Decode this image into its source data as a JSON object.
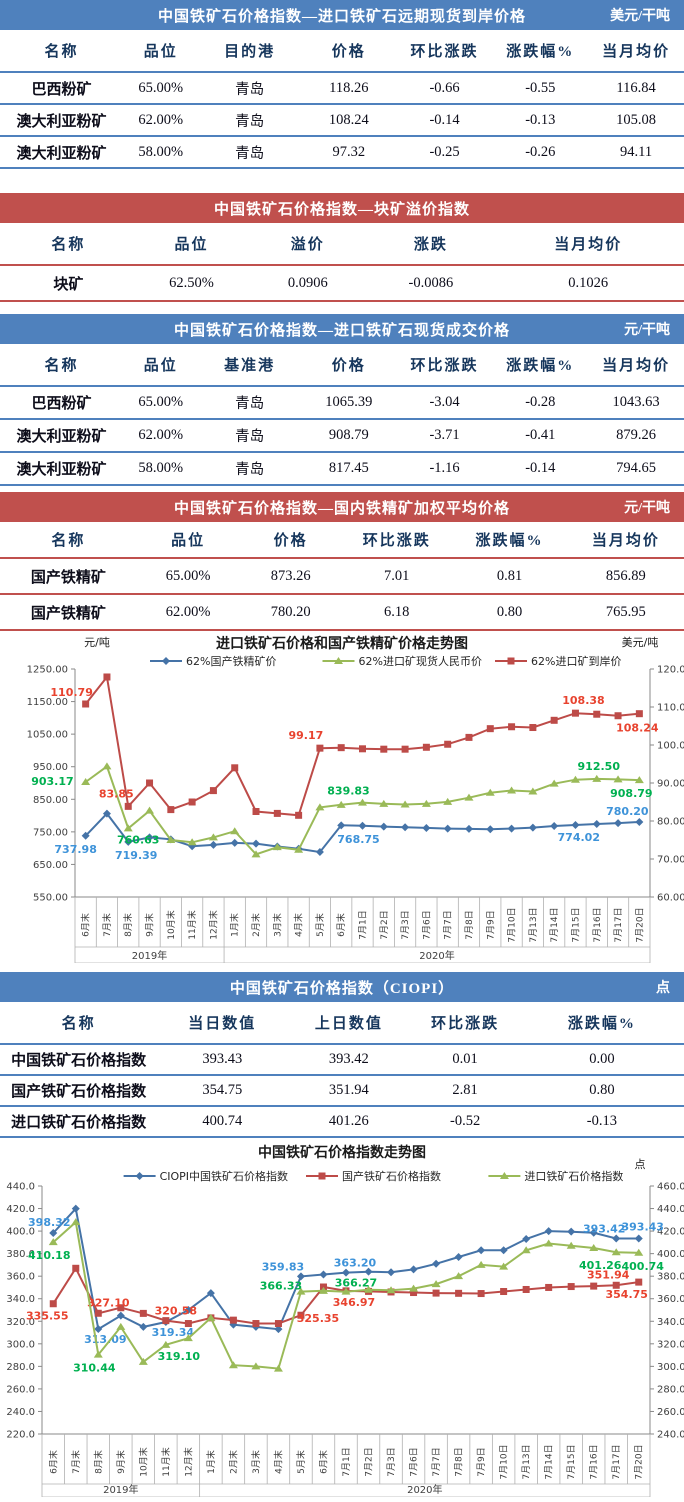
{
  "tables": [
    {
      "title": "中国铁矿石价格指数—进口铁矿石远期现货到岸价格",
      "unit": "美元/干吨",
      "accent": "#4F81BD",
      "columns": [
        "名称",
        "品位",
        "目的港",
        "价格",
        "环比涨跌",
        "涨跌幅%",
        "当月均价"
      ],
      "col_widths": [
        "18%",
        "11%",
        "15%",
        "14%",
        "14%",
        "14%",
        "14%"
      ],
      "rows": [
        [
          "巴西粉矿",
          "65.00%",
          "青岛",
          "118.26",
          "-0.66",
          "-0.55",
          "116.84"
        ],
        [
          "澳大利亚粉矿",
          "62.00%",
          "青岛",
          "108.24",
          "-0.14",
          "-0.13",
          "105.08"
        ],
        [
          "澳大利亚粉矿",
          "58.00%",
          "青岛",
          "97.32",
          "-0.25",
          "-0.26",
          "94.11"
        ]
      ]
    },
    {
      "title": "中国铁矿石价格指数—块矿溢价指数",
      "unit": "",
      "accent": "#C0504D",
      "columns": [
        "名称",
        "品位",
        "溢价",
        "涨跌",
        "当月均价"
      ],
      "col_widths": [
        "20%",
        "16%",
        "18%",
        "18%",
        "28%"
      ],
      "rows": [
        [
          "块矿",
          "62.50%",
          "0.0906",
          "-0.0086",
          "0.1026"
        ]
      ]
    },
    {
      "title": "中国铁矿石价格指数—进口铁矿石现货成交价格",
      "unit": "元/干吨",
      "accent": "#4F81BD",
      "columns": [
        "名称",
        "品位",
        "基准港",
        "价格",
        "环比涨跌",
        "涨跌幅%",
        "当月均价"
      ],
      "col_widths": [
        "18%",
        "11%",
        "15%",
        "14%",
        "14%",
        "14%",
        "14%"
      ],
      "rows": [
        [
          "巴西粉矿",
          "65.00%",
          "青岛",
          "1065.39",
          "-3.04",
          "-0.28",
          "1043.63"
        ],
        [
          "澳大利亚粉矿",
          "62.00%",
          "青岛",
          "908.79",
          "-3.71",
          "-0.41",
          "879.26"
        ],
        [
          "澳大利亚粉矿",
          "58.00%",
          "青岛",
          "817.45",
          "-1.16",
          "-0.14",
          "794.65"
        ]
      ]
    },
    {
      "title": "中国铁矿石价格指数—国内铁精矿加权平均价格",
      "unit": "元/干吨",
      "accent": "#C0504D",
      "columns": [
        "名称",
        "品位",
        "价格",
        "环比涨跌",
        "涨跌幅%",
        "当月均价"
      ],
      "col_widths": [
        "20%",
        "15%",
        "15%",
        "16%",
        "17%",
        "17%"
      ],
      "rows": [
        [
          "国产铁精矿",
          "65.00%",
          "873.26",
          "7.01",
          "0.81",
          "856.89"
        ],
        [
          "国产铁精矿",
          "62.00%",
          "780.20",
          "6.18",
          "0.80",
          "765.95"
        ]
      ]
    },
    {
      "title": "中国铁矿石价格指数（CIOPI）",
      "unit": "点",
      "accent": "#4F81BD",
      "columns": [
        "名称",
        "当日数值",
        "上日数值",
        "环比涨跌",
        "涨跌幅%"
      ],
      "col_widths": [
        "23%",
        "19%",
        "18%",
        "16%",
        "24%"
      ],
      "rows": [
        [
          "中国铁矿石价格指数",
          "393.43",
          "393.42",
          "0.01",
          "0.00"
        ],
        [
          "国产铁矿石价格指数",
          "354.75",
          "351.94",
          "2.81",
          "0.80"
        ],
        [
          "进口铁矿石价格指数",
          "400.74",
          "401.26",
          "-0.52",
          "-0.13"
        ]
      ]
    }
  ],
  "chart_data": [
    {
      "type": "line",
      "title": "进口铁矿石价格和国产铁精矿价格走势图",
      "left_axis": {
        "unit": "元/吨",
        "min": 550,
        "max": 1250,
        "ticks": [
          "1250.00",
          "1150.00",
          "1050.00",
          "950.00",
          "850.00",
          "750.00",
          "650.00",
          "550.00"
        ]
      },
      "right_axis": {
        "unit": "美元/吨",
        "min": 60,
        "max": 120,
        "ticks": [
          "120.00",
          "110.00",
          "100.00",
          "90.00",
          "80.00",
          "70.00",
          "60.00"
        ]
      },
      "categories": [
        "6月末",
        "7月末",
        "8月末",
        "9月末",
        "10月末",
        "11月末",
        "12月末",
        "1月末",
        "2月末",
        "3月末",
        "4月末",
        "5月末",
        "6月末",
        "7月1日",
        "7月2日",
        "7月3日",
        "7月6日",
        "7月7日",
        "7月8日",
        "7月9日",
        "7月10日",
        "7月13日",
        "7月14日",
        "7月15日",
        "7月16日",
        "7月17日",
        "7月20日"
      ],
      "year_groups": [
        {
          "label": "2019年",
          "span": 7
        },
        {
          "label": "2020年",
          "span": 20
        }
      ],
      "grid": false,
      "legend_position": "top",
      "series": [
        {
          "name": "62%国产铁精矿价",
          "axis": "left",
          "marker": "diamond",
          "color": "#4573A7",
          "label_color": "#3E93D9",
          "values": [
            737.98,
            806,
            719.39,
            733,
            727,
            706,
            710,
            716,
            714,
            705,
            698,
            688,
            770,
            768.75,
            766,
            764,
            762,
            760,
            759,
            758,
            760,
            763,
            768,
            771,
            774.02,
            777,
            780.2
          ],
          "point_labels": [
            {
              "i": 0,
              "t": "737.98",
              "dx": -10,
              "dy": 17
            },
            {
              "i": 2,
              "t": "719.39",
              "dx": 8,
              "dy": 17
            },
            {
              "i": 13,
              "t": "768.75",
              "dx": -4,
              "dy": 17
            },
            {
              "i": 24,
              "t": "774.02",
              "dx": -18,
              "dy": 17
            },
            {
              "i": 26,
              "t": "780.20",
              "dx": -12,
              "dy": -7
            }
          ]
        },
        {
          "name": "62%进口矿现货人民币价",
          "axis": "left",
          "marker": "triangle",
          "color": "#9ABA58",
          "label_color": "#00B050",
          "values": [
            903.17,
            951,
            760.63,
            815,
            725,
            718,
            733,
            752,
            681,
            703,
            695,
            825,
            833,
            839.83,
            836,
            834,
            836,
            842,
            855,
            870,
            877,
            874,
            898,
            910,
            912.5,
            911,
            908.79
          ],
          "point_labels": [
            {
              "i": 0,
              "t": "903.17",
              "dx": -12,
              "dy": 3,
              "a": "end"
            },
            {
              "i": 2,
              "t": "760.63",
              "dx": 10,
              "dy": 15
            },
            {
              "i": 13,
              "t": "839.83",
              "dx": -14,
              "dy": -8
            },
            {
              "i": 24,
              "t": "912.50",
              "dx": 2,
              "dy": -9
            },
            {
              "i": 26,
              "t": "908.79",
              "dx": -8,
              "dy": 17
            }
          ]
        },
        {
          "name": "62%进口矿到岸价",
          "axis": "right",
          "marker": "square",
          "color": "#BD4B48",
          "label_color": "#E8432F",
          "values": [
            110.79,
            117.9,
            83.85,
            90,
            83,
            85,
            88,
            94,
            82.5,
            82,
            81.5,
            99.17,
            99.3,
            99,
            98.9,
            98.9,
            99.4,
            100.2,
            102,
            104.3,
            104.8,
            104.6,
            106.5,
            108.38,
            108.1,
            107.7,
            108.24
          ],
          "point_labels": [
            {
              "i": 0,
              "t": "110.79",
              "dx": -14,
              "dy": -8
            },
            {
              "i": 2,
              "t": "83.85",
              "dx": -12,
              "dy": -9
            },
            {
              "i": 11,
              "t": "99.17",
              "dx": -14,
              "dy": -9
            },
            {
              "i": 23,
              "t": "108.38",
              "dx": 8,
              "dy": -9
            },
            {
              "i": 26,
              "t": "108.24",
              "dx": -2,
              "dy": 18
            }
          ]
        }
      ]
    },
    {
      "type": "line",
      "title": "中国铁矿石价格指数走势图",
      "left_axis": {
        "unit": "",
        "min": 220,
        "max": 440,
        "ticks": [
          "440.0",
          "420.0",
          "400.0",
          "380.0",
          "360.0",
          "340.0",
          "320.0",
          "300.0",
          "280.0",
          "260.0",
          "240.0",
          "220.0"
        ]
      },
      "right_axis": {
        "unit": "点",
        "min": 240,
        "max": 460,
        "ticks": [
          "460.0",
          "440.0",
          "420.0",
          "400.0",
          "380.0",
          "360.0",
          "340.0",
          "320.0",
          "300.0",
          "280.0",
          "260.0",
          "240.0"
        ]
      },
      "categories": [
        "6月末",
        "7月末",
        "8月末",
        "9月末",
        "10月末",
        "11月末",
        "12月末",
        "1月末",
        "2月末",
        "3月末",
        "4月末",
        "5月末",
        "6月末",
        "7月1日",
        "7月2日",
        "7月3日",
        "7月6日",
        "7月7日",
        "7月8日",
        "7月9日",
        "7月10日",
        "7月13日",
        "7月14日",
        "7月15日",
        "7月16日",
        "7月17日",
        "7月20日"
      ],
      "year_groups": [
        {
          "label": "2019年",
          "span": 7
        },
        {
          "label": "2020年",
          "span": 20
        }
      ],
      "grid": false,
      "legend_position": "top",
      "series": [
        {
          "name": "CIOPI中国铁矿石价格指数",
          "axis": "left",
          "marker": "diamond",
          "color": "#4573A7",
          "label_color": "#3E93D9",
          "values": [
            398.32,
            419.9,
            313.09,
            325,
            315,
            319.34,
            330,
            345,
            317,
            315,
            313,
            359.83,
            361.5,
            363.2,
            364,
            363.5,
            366,
            371,
            377,
            383,
            383,
            393,
            400,
            399.5,
            398.5,
            393.42,
            393.43
          ],
          "point_labels": [
            {
              "i": 0,
              "t": "398.32",
              "dx": -4,
              "dy": -7
            },
            {
              "i": 2,
              "t": "313.09",
              "dx": 7,
              "dy": 14
            },
            {
              "i": 5,
              "t": "319.34",
              "dx": 7,
              "dy": 14
            },
            {
              "i": 11,
              "t": "359.83",
              "dx": -18,
              "dy": -6
            },
            {
              "i": 13,
              "t": "363.20",
              "dx": 9,
              "dy": -6
            },
            {
              "i": 25,
              "t": "393.42",
              "dx": -12,
              "dy": -6
            },
            {
              "i": 26,
              "t": "393.43",
              "dx": 4,
              "dy": -8
            }
          ]
        },
        {
          "name": "国产铁矿石价格指数",
          "axis": "left",
          "marker": "square",
          "color": "#BD4B48",
          "label_color": "#E8432F",
          "values": [
            335.55,
            367,
            327.1,
            332,
            327,
            320.58,
            318,
            323,
            321,
            318,
            318,
            325.35,
            350.4,
            346.97,
            346.5,
            346,
            345.5,
            345,
            344.8,
            344.6,
            346.4,
            348.2,
            350,
            350.8,
            351.2,
            351.94,
            354.75
          ],
          "point_labels": [
            {
              "i": 0,
              "t": "335.55",
              "dx": -6,
              "dy": 16
            },
            {
              "i": 2,
              "t": "327.10",
              "dx": 10,
              "dy": -7
            },
            {
              "i": 5,
              "t": "320.58",
              "dx": 10,
              "dy": -6
            },
            {
              "i": 11,
              "t": "325.35",
              "dx": 17,
              "dy": 7
            },
            {
              "i": 13,
              "t": "346.97",
              "dx": 8,
              "dy": 15
            },
            {
              "i": 25,
              "t": "351.94",
              "dx": -8,
              "dy": -7
            },
            {
              "i": 26,
              "t": "354.75",
              "dx": -12,
              "dy": 16
            }
          ]
        },
        {
          "name": "进口铁矿石价格指数",
          "axis": "right",
          "marker": "triangle",
          "color": "#9ABA58",
          "label_color": "#00B050",
          "values": [
            410.18,
            428,
            310.44,
            335,
            304,
            319.1,
            325,
            343,
            301,
            300,
            298,
            366.33,
            367,
            366.27,
            368,
            367.5,
            369,
            373,
            380,
            390,
            388.5,
            403,
            409,
            407,
            405,
            401.26,
            400.74
          ],
          "point_labels": [
            {
              "i": 0,
              "t": "410.18",
              "dx": -4,
              "dy": 17
            },
            {
              "i": 2,
              "t": "310.44",
              "dx": -4,
              "dy": 17
            },
            {
              "i": 5,
              "t": "319.10",
              "dx": 13,
              "dy": 15
            },
            {
              "i": 11,
              "t": "366.33",
              "dx": -20,
              "dy": -2
            },
            {
              "i": 13,
              "t": "366.27",
              "dx": 10,
              "dy": -5
            },
            {
              "i": 25,
              "t": "401.26",
              "dx": -16,
              "dy": 17
            },
            {
              "i": 26,
              "t": "400.74",
              "dx": 4,
              "dy": 17
            }
          ]
        }
      ]
    }
  ]
}
